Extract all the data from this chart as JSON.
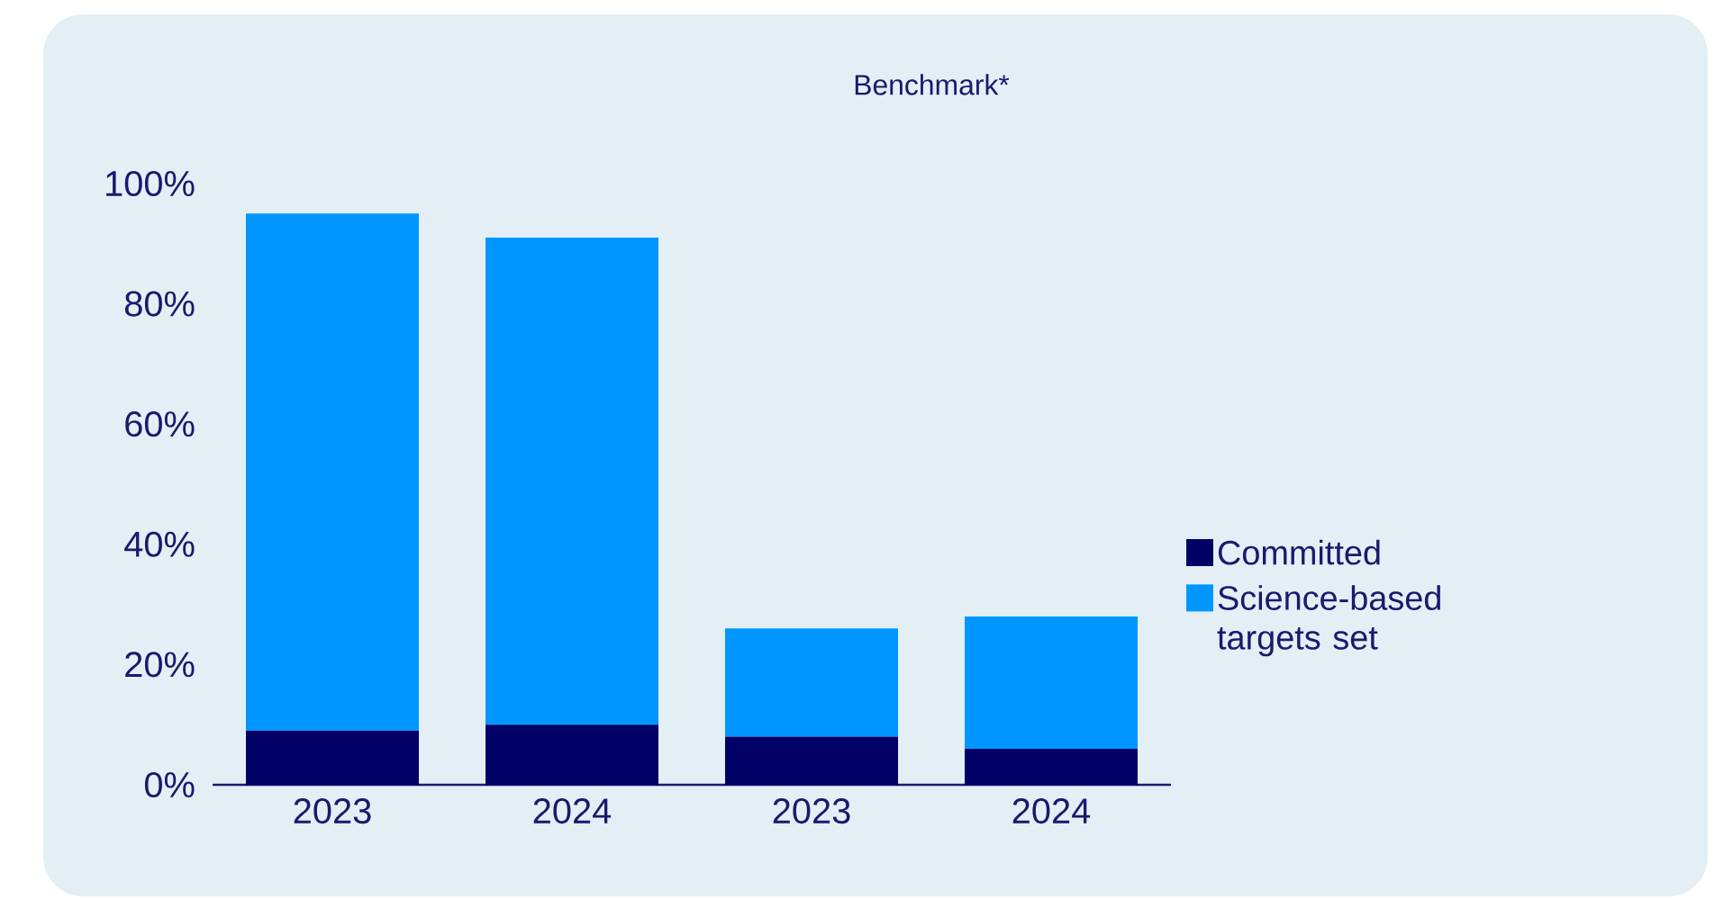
{
  "chart_data": {
    "type": "bar",
    "stacked": true,
    "categories": [
      "2023",
      "2024",
      "2023",
      "2024"
    ],
    "series": [
      {
        "name": "Committed",
        "color": "#000066",
        "values": [
          9,
          10,
          8,
          6
        ]
      },
      {
        "name": "Science-based targets set",
        "color": "#0096ff",
        "values": [
          86,
          81,
          18,
          22
        ]
      }
    ],
    "ylim": [
      0,
      100
    ],
    "yticks": [
      {
        "value": 0,
        "label": "0%"
      },
      {
        "value": 20,
        "label": "20%"
      },
      {
        "value": 40,
        "label": "40%"
      },
      {
        "value": 60,
        "label": "60%"
      },
      {
        "value": 80,
        "label": "80%"
      },
      {
        "value": 100,
        "label": "100%"
      }
    ],
    "annotations": [
      "Benchmark*"
    ],
    "legend": "right",
    "grid": false
  }
}
